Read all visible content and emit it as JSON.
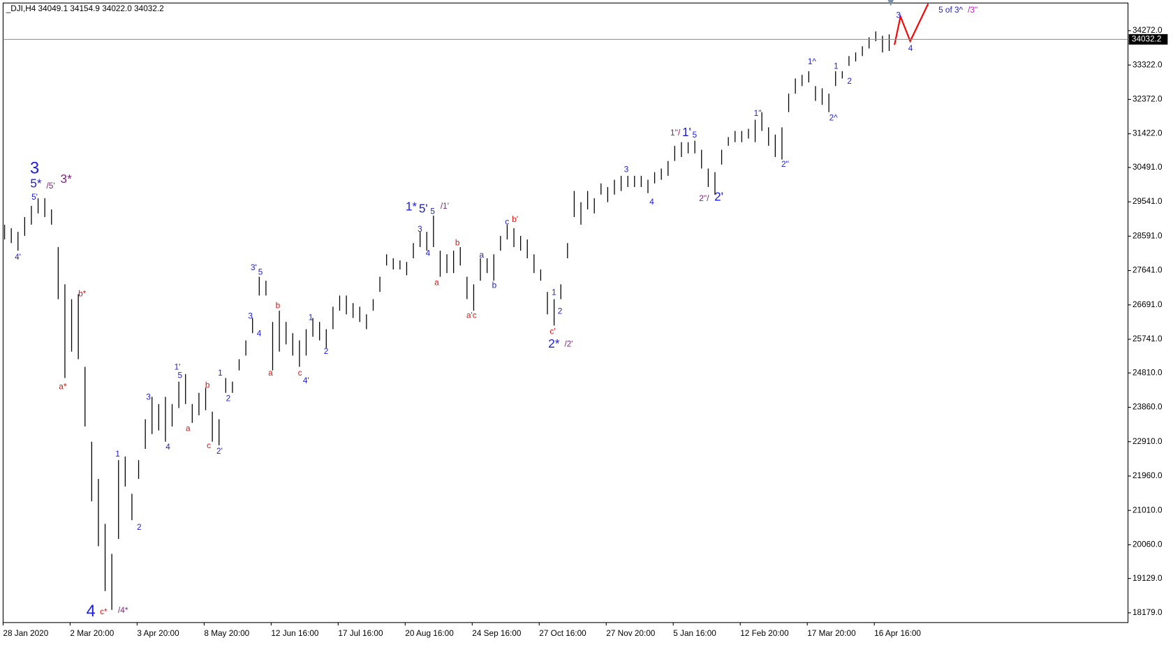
{
  "chart_data": {
    "type": "ohlc",
    "title": "_DJI,H4  34049.1 34154.9 34022.0 34032.2",
    "bar_color": "#000000",
    "categories": [
      "28 Jan 2020",
      null,
      null,
      null,
      null,
      null,
      null,
      null,
      null,
      null,
      "2 Mar 20:00",
      null,
      null,
      null,
      null,
      null,
      null,
      null,
      null,
      null,
      "3 Apr 20:00",
      null,
      null,
      null,
      null,
      null,
      null,
      null,
      null,
      null,
      "8 May 20:00",
      null,
      null,
      null,
      null,
      null,
      null,
      null,
      null,
      null,
      "12 Jun 16:00",
      null,
      null,
      null,
      null,
      null,
      null,
      null,
      null,
      null,
      "17 Jul 16:00",
      null,
      null,
      null,
      null,
      null,
      null,
      null,
      null,
      null,
      "20 Aug 16:00",
      null,
      null,
      null,
      null,
      null,
      null,
      null,
      null,
      null,
      "24 Sep 16:00",
      null,
      null,
      null,
      null,
      null,
      null,
      null,
      null,
      null,
      "27 Oct 16:00",
      null,
      null,
      null,
      null,
      null,
      null,
      null,
      null,
      null,
      "27 Nov 20:00",
      null,
      null,
      null,
      null,
      null,
      null,
      null,
      null,
      null,
      "5 Jan 16:00",
      null,
      null,
      null,
      null,
      null,
      null,
      null,
      null,
      null,
      "12 Feb 20:00",
      null,
      null,
      null,
      null,
      null,
      null,
      null,
      null,
      null,
      "17 Mar 20:00",
      null,
      null,
      null,
      null,
      null,
      null,
      null,
      null,
      null,
      "16 Apr 16:00",
      null,
      null
    ],
    "highs": [
      28910,
      28810,
      28710,
      29120,
      29430,
      29640,
      29640,
      29330,
      28290,
      27260,
      26850,
      26990,
      24980,
      22910,
      21880,
      20640,
      19810,
      22400,
      22500,
      21470,
      22400,
      23530,
      24150,
      23950,
      24150,
      23950,
      24570,
      24780,
      23950,
      24260,
      24400,
      23740,
      23530,
      24670,
      24570,
      25190,
      25710,
      26330,
      27470,
      27360,
      26220,
      26530,
      26220,
      25910,
      25710,
      26020,
      26330,
      26220,
      26020,
      26640,
      26950,
      26950,
      26740,
      26640,
      26430,
      26850,
      27470,
      28090,
      27980,
      27920,
      27880,
      28400,
      28710,
      28710,
      29160,
      28190,
      28090,
      28190,
      28290,
      27470,
      27260,
      27980,
      27980,
      28090,
      28600,
      28910,
      28810,
      28600,
      28500,
      28090,
      27670,
      27050,
      26850,
      27260,
      28400,
      29840,
      29530,
      29840,
      29640,
      30050,
      29950,
      30150,
      30260,
      30260,
      30260,
      30260,
      30150,
      30360,
      30460,
      30670,
      31090,
      31190,
      31190,
      31230,
      30980,
      30460,
      30360,
      30980,
      31330,
      31500,
      31500,
      31560,
      31810,
      32020,
      31600,
      31400,
      31600,
      32530,
      32950,
      33050,
      33150,
      32740,
      32680,
      32530,
      33150,
      33150,
      33570,
      33670,
      33840,
      34090,
      34250,
      34130,
      34170
    ],
    "lows": [
      28500,
      28400,
      28190,
      28600,
      28910,
      29220,
      29120,
      28910,
      26850,
      24670,
      25400,
      25190,
      23330,
      21260,
      20020,
      18780,
      18260,
      20220,
      21670,
      20740,
      21880,
      22710,
      23120,
      23220,
      22910,
      23330,
      23840,
      23950,
      23430,
      23640,
      23780,
      22910,
      22810,
      24260,
      24260,
      24880,
      25290,
      25910,
      26950,
      26950,
      24880,
      25400,
      25600,
      25290,
      24980,
      25290,
      25810,
      25710,
      25500,
      26020,
      26530,
      26430,
      26330,
      26220,
      26020,
      26530,
      27050,
      27780,
      27670,
      27670,
      27510,
      27980,
      28290,
      28190,
      28290,
      27470,
      27570,
      27570,
      27780,
      26850,
      26530,
      27360,
      27570,
      27360,
      28190,
      28500,
      28290,
      28190,
      27980,
      27570,
      27360,
      26430,
      26120,
      26850,
      27980,
      29120,
      28910,
      29330,
      29220,
      29740,
      29530,
      29740,
      29840,
      29950,
      29950,
      29950,
      29780,
      30050,
      30150,
      30260,
      30670,
      30780,
      30880,
      30880,
      30460,
      29950,
      29740,
      30570,
      31090,
      31190,
      31190,
      31290,
      31190,
      31500,
      31090,
      30780,
      30710,
      32020,
      32530,
      32740,
      32840,
      32330,
      32220,
      32020,
      32740,
      32950,
      33300,
      33420,
      33570,
      33780,
      33980,
      33670,
      33710
    ],
    "ylim": [
      17910,
      35037
    ],
    "yticks": [
      {
        "value": 34272,
        "label": "34272.0"
      },
      {
        "value": 33322,
        "label": "33322.0"
      },
      {
        "value": 32372,
        "label": "32372.0"
      },
      {
        "value": 31422,
        "label": "31422.0"
      },
      {
        "value": 30491,
        "label": "30491.0"
      },
      {
        "value": 29541,
        "label": "29541.0"
      },
      {
        "value": 28591,
        "label": "28591.0"
      },
      {
        "value": 27641,
        "label": "27641.0"
      },
      {
        "value": 26691,
        "label": "26691.0"
      },
      {
        "value": 25741,
        "label": "25741.0"
      },
      {
        "value": 24810,
        "label": "24810.0"
      },
      {
        "value": 23860,
        "label": "23860.0"
      },
      {
        "value": 22910,
        "label": "22910.0"
      },
      {
        "value": 21960,
        "label": "21960.0"
      },
      {
        "value": 21010,
        "label": "21010.0"
      },
      {
        "value": 20060,
        "label": "20060.0"
      },
      {
        "value": 19129,
        "label": "19129.0"
      },
      {
        "value": 18179,
        "label": "18179.0"
      }
    ],
    "last_price": 34032.2,
    "annotations": [
      {
        "text": "3",
        "color": "#1c1cd8",
        "size": "large",
        "x": 4.7,
        "y": 30440
      },
      {
        "text": "5*",
        "color": "#1c1cd8",
        "size": "medium",
        "x": 4.9,
        "y": 30030
      },
      {
        "text": "/5'",
        "color": "#7a1f7a",
        "size": "small",
        "x": 7.1,
        "y": 29970
      },
      {
        "text": "3*",
        "color": "#7a1f7a",
        "size": "medium",
        "x": 9.4,
        "y": 30150
      },
      {
        "text": "5'",
        "color": "#1c1cd8",
        "size": "small",
        "x": 4.7,
        "y": 29660
      },
      {
        "text": "4'",
        "color": "#1c1cd8",
        "size": "small",
        "x": 2.2,
        "y": 28000
      },
      {
        "text": "b*",
        "color": "#e01010",
        "size": "small",
        "x": 11.8,
        "y": 26990
      },
      {
        "text": "a*",
        "color": "#e01010",
        "size": "small",
        "x": 8.9,
        "y": 24420
      },
      {
        "text": "4",
        "color": "#1c1cd8",
        "size": "large",
        "x": 13.1,
        "y": 18200
      },
      {
        "text": "c*",
        "color": "#e01010",
        "size": "small",
        "x": 15.0,
        "y": 18200
      },
      {
        "text": "/4*",
        "color": "#7a1f7a",
        "size": "small",
        "x": 17.9,
        "y": 18240
      },
      {
        "text": "1",
        "color": "#1c1cd8",
        "size": "small",
        "x": 17.1,
        "y": 22560
      },
      {
        "text": "2",
        "color": "#1c1cd8",
        "size": "small",
        "x": 20.3,
        "y": 20530
      },
      {
        "text": "3",
        "color": "#1c1cd8",
        "size": "small",
        "x": 21.7,
        "y": 24130
      },
      {
        "text": "4",
        "color": "#1c1cd8",
        "size": "small",
        "x": 24.6,
        "y": 22750
      },
      {
        "text": "1'",
        "color": "#1c1cd8",
        "size": "small",
        "x": 26.0,
        "y": 24960
      },
      {
        "text": "5",
        "color": "#1c1cd8",
        "size": "small",
        "x": 26.4,
        "y": 24730
      },
      {
        "text": "a",
        "color": "#e01010",
        "size": "small",
        "x": 27.6,
        "y": 23260
      },
      {
        "text": "b",
        "color": "#e01010",
        "size": "small",
        "x": 30.5,
        "y": 24460
      },
      {
        "text": "c",
        "color": "#e01010",
        "size": "small",
        "x": 30.7,
        "y": 22790
      },
      {
        "text": "2'",
        "color": "#1c1cd8",
        "size": "small",
        "x": 32.3,
        "y": 22640
      },
      {
        "text": "1",
        "color": "#1c1cd8",
        "size": "small",
        "x": 32.4,
        "y": 24800
      },
      {
        "text": "2",
        "color": "#1c1cd8",
        "size": "small",
        "x": 33.6,
        "y": 24090
      },
      {
        "text": "3'",
        "color": "#1c1cd8",
        "size": "small",
        "x": 37.4,
        "y": 27710
      },
      {
        "text": "5",
        "color": "#1c1cd8",
        "size": "small",
        "x": 38.4,
        "y": 27590
      },
      {
        "text": "3",
        "color": "#1c1cd8",
        "size": "small",
        "x": 36.9,
        "y": 26370
      },
      {
        "text": "4",
        "color": "#1c1cd8",
        "size": "small",
        "x": 38.2,
        "y": 25890
      },
      {
        "text": "b",
        "color": "#e01010",
        "size": "small",
        "x": 41.0,
        "y": 26660
      },
      {
        "text": "a",
        "color": "#e01010",
        "size": "small",
        "x": 39.9,
        "y": 24800
      },
      {
        "text": "c",
        "color": "#e01010",
        "size": "small",
        "x": 44.3,
        "y": 24800
      },
      {
        "text": "4'",
        "color": "#1c1cd8",
        "size": "small",
        "x": 45.2,
        "y": 24590
      },
      {
        "text": "1",
        "color": "#1c1cd8",
        "size": "small",
        "x": 45.9,
        "y": 26330
      },
      {
        "text": "2",
        "color": "#1c1cd8",
        "size": "small",
        "x": 48.2,
        "y": 25400
      },
      {
        "text": "1*",
        "color": "#1c1cd8",
        "size": "medium",
        "x": 60.9,
        "y": 29390
      },
      {
        "text": "5'",
        "color": "#1c1cd8",
        "size": "medium",
        "x": 62.7,
        "y": 29330
      },
      {
        "text": "5",
        "color": "#1c1cd8",
        "size": "small",
        "x": 64.1,
        "y": 29270
      },
      {
        "text": "/1'",
        "color": "#7a1f7a",
        "size": "small",
        "x": 65.9,
        "y": 29410
      },
      {
        "text": "3",
        "color": "#1c1cd8",
        "size": "small",
        "x": 62.2,
        "y": 28770
      },
      {
        "text": "4",
        "color": "#1c1cd8",
        "size": "small",
        "x": 63.4,
        "y": 28110
      },
      {
        "text": "a",
        "color": "#e01010",
        "size": "small",
        "x": 64.7,
        "y": 27300
      },
      {
        "text": "b",
        "color": "#e01010",
        "size": "small",
        "x": 67.8,
        "y": 28400
      },
      {
        "text": "a'c",
        "color": "#e01010",
        "size": "small",
        "x": 69.9,
        "y": 26390
      },
      {
        "text": "a",
        "color": "#1c1cd8",
        "size": "small",
        "x": 71.4,
        "y": 28060
      },
      {
        "text": "b",
        "color": "#1c1cd8",
        "size": "small",
        "x": 73.3,
        "y": 27220
      },
      {
        "text": "c",
        "color": "#1c1cd8",
        "size": "small",
        "x": 75.2,
        "y": 28980
      },
      {
        "text": "b'",
        "color": "#e01010",
        "size": "small",
        "x": 76.4,
        "y": 29040
      },
      {
        "text": "c'",
        "color": "#e01010",
        "size": "small",
        "x": 82.0,
        "y": 25950
      },
      {
        "text": "1",
        "color": "#1c1cd8",
        "size": "small",
        "x": 82.2,
        "y": 27030
      },
      {
        "text": "2",
        "color": "#1c1cd8",
        "size": "small",
        "x": 83.1,
        "y": 26510
      },
      {
        "text": "2*",
        "color": "#1c1cd8",
        "size": "medium",
        "x": 82.2,
        "y": 25600
      },
      {
        "text": "/2'",
        "color": "#7a1f7a",
        "size": "small",
        "x": 84.4,
        "y": 25600
      },
      {
        "text": "3",
        "color": "#1c1cd8",
        "size": "small",
        "x": 93.0,
        "y": 30420
      },
      {
        "text": "4",
        "color": "#1c1cd8",
        "size": "small",
        "x": 96.8,
        "y": 29530
      },
      {
        "text": "1''/",
        "color": "#a0106e",
        "size": "small",
        "x": 100.3,
        "y": 31440
      },
      {
        "text": "1'",
        "color": "#1c1cd8",
        "size": "medium",
        "x": 102.0,
        "y": 31440
      },
      {
        "text": "5",
        "color": "#1c1cd8",
        "size": "small",
        "x": 103.2,
        "y": 31380
      },
      {
        "text": "2''/",
        "color": "#7a1f7a",
        "size": "small",
        "x": 104.6,
        "y": 29620
      },
      {
        "text": "2'",
        "color": "#1c1cd8",
        "size": "medium",
        "x": 106.8,
        "y": 29660
      },
      {
        "text": "1''",
        "color": "#1c1cd8",
        "size": "small",
        "x": 112.6,
        "y": 31980
      },
      {
        "text": "2''",
        "color": "#1c1cd8",
        "size": "small",
        "x": 116.7,
        "y": 30570
      },
      {
        "text": "1^",
        "color": "#1c1cd8",
        "size": "small",
        "x": 120.7,
        "y": 33400
      },
      {
        "text": "2^",
        "color": "#1c1cd8",
        "size": "small",
        "x": 123.9,
        "y": 31850
      },
      {
        "text": "1",
        "color": "#1c1cd8",
        "size": "small",
        "x": 124.3,
        "y": 33280
      },
      {
        "text": "2",
        "color": "#1c1cd8",
        "size": "small",
        "x": 126.3,
        "y": 32860
      },
      {
        "text": "3",
        "color": "#1c1cd8",
        "size": "small",
        "x": 133.6,
        "y": 34690
      },
      {
        "text": "4",
        "color": "#1c1cd8",
        "size": "small",
        "x": 135.4,
        "y": 33770
      },
      {
        "text": "5 of 3^",
        "color": "#1c1cd8",
        "size": "small",
        "x": 141.4,
        "y": 34830
      },
      {
        "text": "/3''",
        "color": "#c020c0",
        "size": "small",
        "x": 144.7,
        "y": 34830
      }
    ]
  }
}
